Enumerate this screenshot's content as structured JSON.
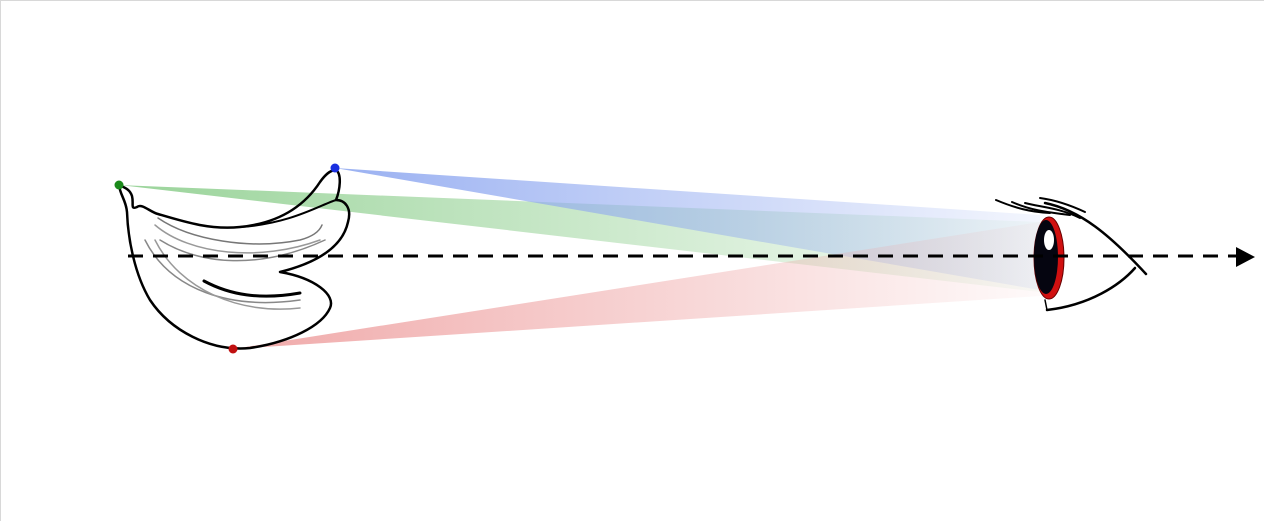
{
  "diagram": {
    "objects": [
      "banana-bunch",
      "eye"
    ],
    "points": [
      {
        "name": "green-point",
        "color": "#1a8a1a"
      },
      {
        "name": "blue-point",
        "color": "#1a2fe0"
      },
      {
        "name": "red-point",
        "color": "#c01010"
      }
    ],
    "ray_colors": {
      "green": "#8fcf8f",
      "blue": "#8fa8f0",
      "red": "#eea0a0"
    },
    "iris_color": "#d01010",
    "axis_style": "dashed-arrow"
  }
}
